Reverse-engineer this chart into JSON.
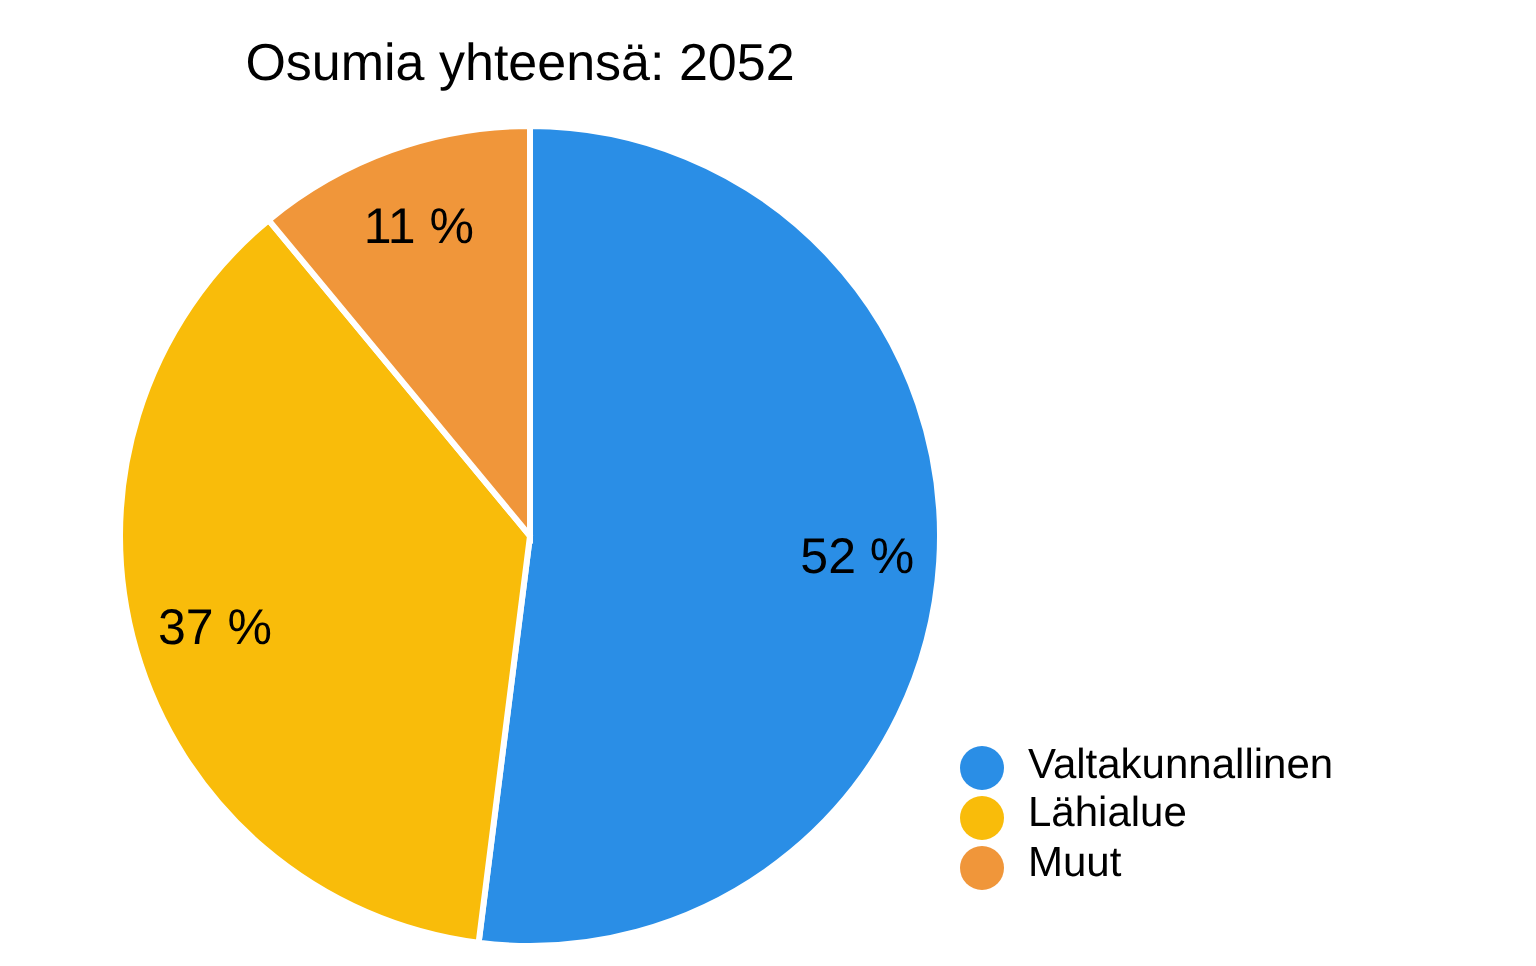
{
  "chart_data": {
    "type": "pie",
    "title": "Osumia yhteensä: 2052",
    "categories": [
      "Valtakunnallinen",
      "Lähialue",
      "Muut"
    ],
    "values": [
      52,
      37,
      11
    ],
    "colors": [
      "#2a8ee6",
      "#f9bc0a",
      "#f0963a"
    ],
    "value_labels": [
      "52 %",
      "37 %",
      "11 %"
    ],
    "legend": "bottom right"
  }
}
